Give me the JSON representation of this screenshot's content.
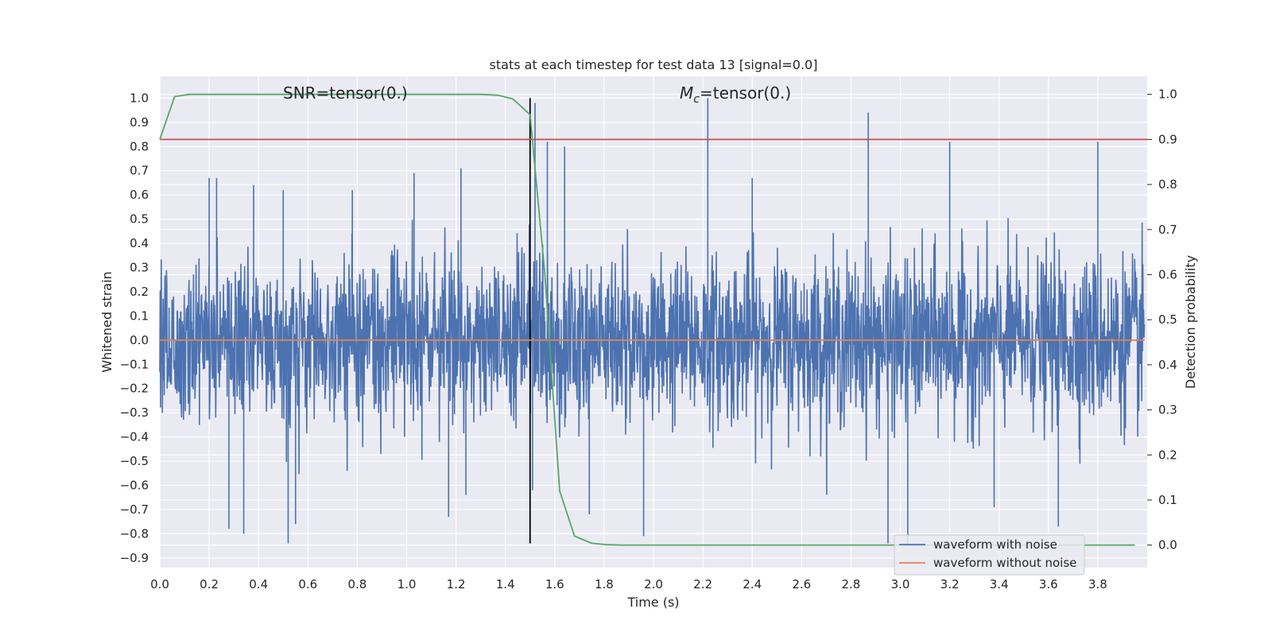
{
  "chart_data": {
    "type": "line",
    "title": "stats at each timestep for test data 13 [signal=0.0]",
    "xlabel": "Time (s)",
    "ylabel": "Whitened strain",
    "ylabel_right": "Detection probability",
    "xlim": [
      0.0,
      4.0
    ],
    "ylim": [
      -0.94,
      1.09
    ],
    "ylim_right": [
      -0.05,
      1.04
    ],
    "xticks": [
      "0.0",
      "0.2",
      "0.4",
      "0.6",
      "0.8",
      "1.0",
      "1.2",
      "1.4",
      "1.6",
      "1.8",
      "2.0",
      "2.2",
      "2.4",
      "2.6",
      "2.8",
      "3.0",
      "3.2",
      "3.4",
      "3.6",
      "3.8"
    ],
    "yticks": [
      "1.0",
      "0.9",
      "0.8",
      "0.7",
      "0.6",
      "0.5",
      "0.4",
      "0.3",
      "0.2",
      "0.1",
      "0.0",
      "−0.1",
      "−0.2",
      "−0.3",
      "−0.4",
      "−0.5",
      "−0.6",
      "−0.7",
      "−0.8",
      "−0.9"
    ],
    "yticks_right": [
      "1.0",
      "0.9",
      "0.8",
      "0.7",
      "0.6",
      "0.5",
      "0.4",
      "0.3",
      "0.2",
      "0.1",
      "0.0"
    ],
    "grid": true,
    "legend_position": "lower-right",
    "annotations": [
      {
        "text": "SNR=tensor(0.)",
        "x": 0.5,
        "y": 1.0
      },
      {
        "text_math": "M",
        "text_sub": "c",
        "text": "=tensor(0.)",
        "x": 2.1,
        "y": 1.0
      }
    ],
    "vline": {
      "x": 1.5,
      "y_range": [
        -0.84,
        1.0
      ]
    },
    "threshold_right": 0.9,
    "series": [
      {
        "name": "waveform with noise",
        "axis": "left",
        "color": "#4c72b0",
        "kind": "noise",
        "note": "dense whitened noise, approx. range -0.84 to 1.0",
        "peaks": [
          [
            0.2,
            0.67
          ],
          [
            0.23,
            0.67
          ],
          [
            0.38,
            0.64
          ],
          [
            0.5,
            0.62
          ],
          [
            0.78,
            0.62
          ],
          [
            1.03,
            0.69
          ],
          [
            1.22,
            0.71
          ],
          [
            1.52,
            0.98
          ],
          [
            1.57,
            0.82
          ],
          [
            1.64,
            0.8
          ],
          [
            2.22,
            1.0
          ],
          [
            2.4,
            0.67
          ],
          [
            2.87,
            0.94
          ],
          [
            3.2,
            0.82
          ],
          [
            3.8,
            0.82
          ]
        ],
        "troughs": [
          [
            0.28,
            -0.78
          ],
          [
            0.34,
            -0.8
          ],
          [
            0.52,
            -0.84
          ],
          [
            0.55,
            -0.76
          ],
          [
            1.17,
            -0.73
          ],
          [
            1.24,
            -0.64
          ],
          [
            1.51,
            -0.62
          ],
          [
            1.74,
            -0.72
          ],
          [
            1.96,
            -0.81
          ],
          [
            2.95,
            -0.84
          ],
          [
            3.03,
            -0.85
          ],
          [
            3.38,
            -0.69
          ],
          [
            3.64,
            -0.77
          ]
        ]
      },
      {
        "name": "waveform without noise",
        "axis": "left",
        "color": "#dd8452",
        "x": [
          0.0,
          3.99
        ],
        "y": [
          0.0,
          0.0
        ]
      },
      {
        "axis": "right",
        "color": "#55a868",
        "x": [
          0.0,
          0.06,
          0.12,
          0.18,
          0.24,
          0.3,
          0.4,
          0.6,
          0.8,
          1.0,
          1.2,
          1.3,
          1.37,
          1.43,
          1.5,
          1.56,
          1.62,
          1.68,
          1.75,
          1.81,
          1.87,
          2.0,
          2.5,
          3.0,
          3.5,
          3.95
        ],
        "y": [
          0.9,
          0.995,
          1.0,
          1.0,
          1.0,
          1.0,
          1.0,
          1.0,
          1.0,
          1.0,
          1.0,
          1.0,
          0.998,
          0.99,
          0.955,
          0.6,
          0.12,
          0.02,
          0.004,
          0.001,
          0.0,
          0.0,
          0.0,
          0.0,
          0.0,
          0.0
        ]
      },
      {
        "axis": "right",
        "color": "#c44e52",
        "x": [
          0.0,
          4.0
        ],
        "y": [
          0.9,
          0.9
        ]
      }
    ]
  }
}
